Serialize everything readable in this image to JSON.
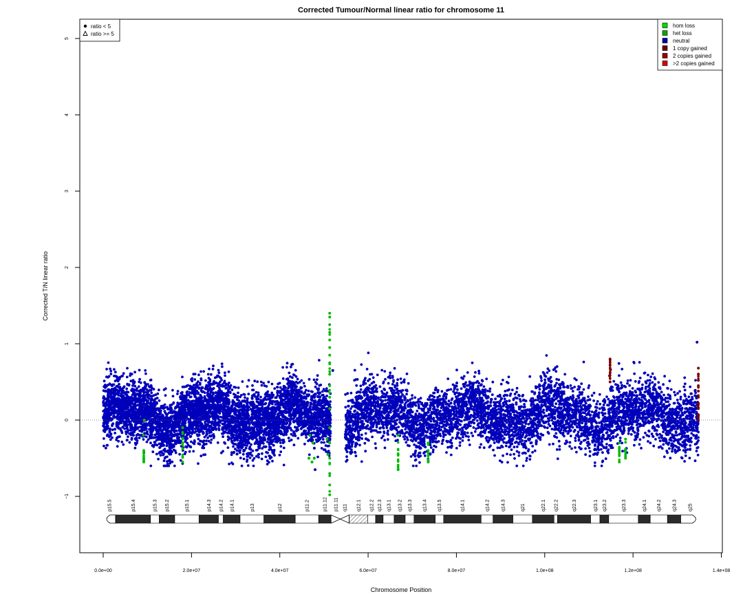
{
  "chart_data": {
    "type": "scatter",
    "title": "Corrected Tumour/Normal linear ratio for chromosome  11",
    "xlabel": "Chromosome Position",
    "ylabel": "Corrected T/N linear ratio",
    "xlim": [
      0,
      140000000
    ],
    "ylim": [
      -1.8,
      5.3
    ],
    "x_ticks": [
      0,
      20000000,
      40000000,
      60000000,
      80000000,
      100000000,
      120000000,
      140000000
    ],
    "x_tick_labels": [
      "0.0e+00",
      "2.0e+07",
      "4.0e+07",
      "6.0e+07",
      "8.0e+07",
      "1.0e+08",
      "1.2e+08",
      "1.4e+08"
    ],
    "y_ticks": [
      -1,
      0,
      1,
      2,
      3,
      4,
      5
    ],
    "y_tick_labels": [
      "−1",
      "0",
      "1",
      "2",
      "3",
      "4",
      "5"
    ],
    "reference_line": 0,
    "shape_legend": {
      "placement": "top-left",
      "entries": [
        {
          "label": "ratio < 5",
          "shape": "filled-circle"
        },
        {
          "label": "ratio >= 5",
          "shape": "open-triangle"
        }
      ]
    },
    "color_legend": {
      "placement": "top-right",
      "entries": [
        {
          "label": "hom loss",
          "color": "#00dd00"
        },
        {
          "label": "het loss",
          "color": "#00aa00"
        },
        {
          "label": "neutral",
          "color": "#0000aa"
        },
        {
          "label": "1 copy gained",
          "color": "#6e0000"
        },
        {
          "label": "2 copies gained",
          "color": "#990000"
        },
        {
          "label": ">2 copies gained",
          "color": "#dd0000"
        }
      ]
    },
    "series": [
      {
        "name": "neutral",
        "color": "#0000bb",
        "segments": [
          {
            "x_range": [
              0,
              51500000
            ],
            "mean": 0.05,
            "sd": 0.2,
            "min": -0.6,
            "max": 0.85
          },
          {
            "x_range": [
              54800000,
              134800000
            ],
            "mean": 0.05,
            "sd": 0.2,
            "min": -0.6,
            "max": 0.9
          }
        ],
        "outliers": [
          [
            52000000,
            0.65
          ],
          [
            134500000,
            1.02
          ],
          [
            48000000,
            -0.65
          ]
        ]
      },
      {
        "name": "het loss",
        "color": "#00bb00",
        "points": [
          [
            9200000,
            -0.55
          ],
          [
            9200000,
            -0.4
          ],
          [
            9100000,
            -0.2
          ],
          [
            9300000,
            0.0
          ],
          [
            18000000,
            -0.55
          ],
          [
            18000000,
            -0.3
          ],
          [
            18000000,
            -0.1
          ],
          [
            46600000,
            -0.5
          ],
          [
            46800000,
            -0.2
          ],
          [
            47300000,
            -0.55
          ],
          [
            47500000,
            -0.3
          ],
          [
            47800000,
            -0.5
          ],
          [
            51300000,
            1.4
          ],
          [
            51300000,
            1.35
          ],
          [
            51300000,
            1.25
          ],
          [
            51300000,
            1.15
          ],
          [
            51300000,
            1.05
          ],
          [
            51300000,
            0.95
          ],
          [
            51300000,
            0.85
          ],
          [
            51300000,
            0.75
          ],
          [
            51300000,
            0.6
          ],
          [
            51300000,
            0.45
          ],
          [
            51300000,
            0.3
          ],
          [
            51300000,
            0.15
          ],
          [
            51300000,
            -0.1
          ],
          [
            51300000,
            -0.3
          ],
          [
            51300000,
            -0.5
          ],
          [
            51300000,
            -0.7
          ],
          [
            51300000,
            -0.85
          ],
          [
            51300000,
            -0.98
          ],
          [
            50900000,
            -0.45
          ],
          [
            50700000,
            -0.25
          ],
          [
            66800000,
            -0.65
          ],
          [
            66800000,
            -0.45
          ],
          [
            66800000,
            -0.2
          ],
          [
            73600000,
            -0.55
          ],
          [
            73600000,
            -0.3
          ],
          [
            116900000,
            -0.55
          ],
          [
            116900000,
            -0.3
          ],
          [
            118300000,
            -0.5
          ],
          [
            118300000,
            -0.25
          ]
        ]
      },
      {
        "name": "1 copy gained",
        "color": "#7a0000",
        "points": [
          [
            114800000,
            0.8
          ],
          [
            114800000,
            0.72
          ],
          [
            114900000,
            0.66
          ],
          [
            114700000,
            0.58
          ],
          [
            114800000,
            0.5
          ],
          [
            134800000,
            0.68
          ],
          [
            134800000,
            0.6
          ],
          [
            134800000,
            0.52
          ],
          [
            134800000,
            0.45
          ],
          [
            134800000,
            0.38
          ],
          [
            134800000,
            0.3
          ],
          [
            134800000,
            0.22
          ],
          [
            134800000,
            0.15
          ],
          [
            134800000,
            0.07
          ],
          [
            134800000,
            0.0
          ]
        ]
      }
    ],
    "ideogram": {
      "bands": [
        {
          "label": "p15.5",
          "start": 0,
          "end": 2800000,
          "stain": "gneg"
        },
        {
          "label": "p15.4",
          "start": 2800000,
          "end": 10700000,
          "stain": "gpos"
        },
        {
          "label": "p15.3",
          "start": 10700000,
          "end": 12700000,
          "stain": "gneg"
        },
        {
          "label": "p15.2",
          "start": 12700000,
          "end": 16200000,
          "stain": "gpos"
        },
        {
          "label": "p15.1",
          "start": 16200000,
          "end": 21700000,
          "stain": "gneg"
        },
        {
          "label": "p14.3",
          "start": 21700000,
          "end": 26100000,
          "stain": "gpos"
        },
        {
          "label": "p14.2",
          "start": 26100000,
          "end": 27200000,
          "stain": "gneg"
        },
        {
          "label": "p14.1",
          "start": 27200000,
          "end": 31000000,
          "stain": "gpos"
        },
        {
          "label": "p13",
          "start": 31000000,
          "end": 36400000,
          "stain": "gneg"
        },
        {
          "label": "p12",
          "start": 36400000,
          "end": 43500000,
          "stain": "gpos"
        },
        {
          "label": "p11.2",
          "start": 43500000,
          "end": 48800000,
          "stain": "gneg"
        },
        {
          "label": "p11.12",
          "start": 48800000,
          "end": 51600000,
          "stain": "gpos"
        },
        {
          "label": "p11.11",
          "start": 51600000,
          "end": 53700000,
          "stain": "acen"
        },
        {
          "label": "q11",
          "start": 53700000,
          "end": 55700000,
          "stain": "acen"
        },
        {
          "label": "q12.1",
          "start": 55700000,
          "end": 59900000,
          "stain": "gvar"
        },
        {
          "label": "q12.2",
          "start": 59900000,
          "end": 61700000,
          "stain": "gneg"
        },
        {
          "label": "q12.3",
          "start": 61700000,
          "end": 63400000,
          "stain": "gpos"
        },
        {
          "label": "q13.1",
          "start": 63400000,
          "end": 65900000,
          "stain": "gneg"
        },
        {
          "label": "q13.2",
          "start": 65900000,
          "end": 68400000,
          "stain": "gpos"
        },
        {
          "label": "q13.3",
          "start": 68400000,
          "end": 70400000,
          "stain": "gneg"
        },
        {
          "label": "q13.4",
          "start": 70400000,
          "end": 75200000,
          "stain": "gpos"
        },
        {
          "label": "q13.5",
          "start": 75200000,
          "end": 77100000,
          "stain": "gneg"
        },
        {
          "label": "q14.1",
          "start": 77100000,
          "end": 85600000,
          "stain": "gpos"
        },
        {
          "label": "q14.2",
          "start": 85600000,
          "end": 88300000,
          "stain": "gneg"
        },
        {
          "label": "q14.3",
          "start": 88300000,
          "end": 92800000,
          "stain": "gpos"
        },
        {
          "label": "q21",
          "start": 92800000,
          "end": 97200000,
          "stain": "gneg"
        },
        {
          "label": "q22.1",
          "start": 97200000,
          "end": 102100000,
          "stain": "gpos"
        },
        {
          "label": "q22.2",
          "start": 102100000,
          "end": 102900000,
          "stain": "gneg"
        },
        {
          "label": "q22.3",
          "start": 102900000,
          "end": 110400000,
          "stain": "gpos"
        },
        {
          "label": "q23.1",
          "start": 110400000,
          "end": 112500000,
          "stain": "gneg"
        },
        {
          "label": "q23.2",
          "start": 112500000,
          "end": 114500000,
          "stain": "gpos"
        },
        {
          "label": "q23.3",
          "start": 114500000,
          "end": 121200000,
          "stain": "gneg"
        },
        {
          "label": "q24.1",
          "start": 121200000,
          "end": 123900000,
          "stain": "gpos"
        },
        {
          "label": "q24.2",
          "start": 123900000,
          "end": 127800000,
          "stain": "gneg"
        },
        {
          "label": "q24.3",
          "start": 127800000,
          "end": 130800000,
          "stain": "gpos"
        },
        {
          "label": "q25",
          "start": 130800000,
          "end": 135000000,
          "stain": "gneg"
        }
      ]
    }
  }
}
